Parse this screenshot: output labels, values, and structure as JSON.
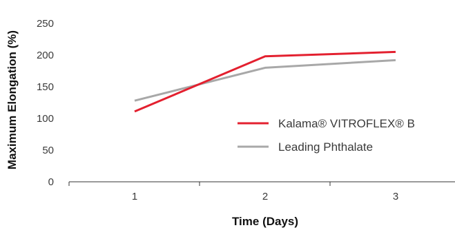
{
  "chart_data": {
    "type": "line",
    "title": "",
    "xlabel": "Time (Days)",
    "ylabel": "Maximum Elongation (%)",
    "categories": [
      "1",
      "2",
      "3"
    ],
    "ylim": [
      0,
      250
    ],
    "yticks": [
      0,
      50,
      100,
      150,
      200,
      250
    ],
    "grid": false,
    "legend_position": "center-right",
    "series": [
      {
        "name": "Kalama® VITROFLEX® B",
        "color": "#e3202f",
        "values": [
          111,
          198,
          205
        ]
      },
      {
        "name": "Leading Phthalate",
        "color": "#a8a8a8",
        "values": [
          128,
          180,
          192
        ]
      }
    ]
  }
}
